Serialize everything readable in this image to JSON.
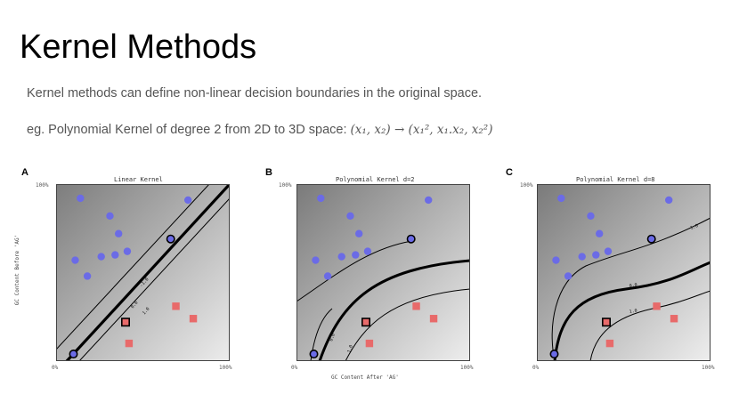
{
  "slide": {
    "title": "Kernel Methods",
    "line1": "Kernel methods can define non-linear decision boundaries in the original space.",
    "line2_prefix": "eg. Polynomial Kernel of degree 2 from 2D to 3D space: ",
    "line2_formula": "(x₁, x₂) → (x₁², x₁.x₂, x₂²)"
  },
  "figure": {
    "ylabel": "GC Content Before 'AG'",
    "xlabel": "GC Content After 'AG'",
    "panels": [
      {
        "letter": "A",
        "title": "Linear Kernel",
        "y_top": "100%",
        "x_min": "0%",
        "x_max": "100%",
        "contour_labels": [
          "-1.0",
          "0.0",
          "1.0"
        ]
      },
      {
        "letter": "B",
        "title": "Polynomial Kernel d=2",
        "y_top": "100%",
        "x_min": "0%",
        "x_max": "100%",
        "contour_labels": [
          "0.0",
          "1.0"
        ]
      },
      {
        "letter": "C",
        "title": "Polynomial Kernel d=8",
        "y_top": "100%",
        "x_min": "0%",
        "x_max": "100%",
        "contour_labels": [
          "-1.0",
          "0.0",
          "1.0"
        ]
      }
    ]
  },
  "chart_data": {
    "type": "scatter",
    "xlabel": "GC Content After 'AG'",
    "ylabel": "GC Content Before 'AG'",
    "xlim": [
      0,
      100
    ],
    "ylim": [
      0,
      100
    ],
    "series": [
      {
        "marker": "circle",
        "color": "#6b6be6",
        "x": [
          14,
          31,
          36,
          41,
          26,
          11,
          18,
          34,
          66,
          76,
          10
        ],
        "y": [
          92,
          82,
          72,
          62,
          59,
          57,
          48,
          60,
          69,
          91,
          4
        ]
      },
      {
        "marker": "square",
        "color": "#e86a6a",
        "x": [
          40,
          69,
          79,
          42
        ],
        "y": [
          22,
          31,
          24,
          10
        ]
      }
    ],
    "support_vectors": {
      "x": [
        66,
        10,
        40
      ],
      "y": [
        69,
        4,
        22
      ]
    }
  }
}
